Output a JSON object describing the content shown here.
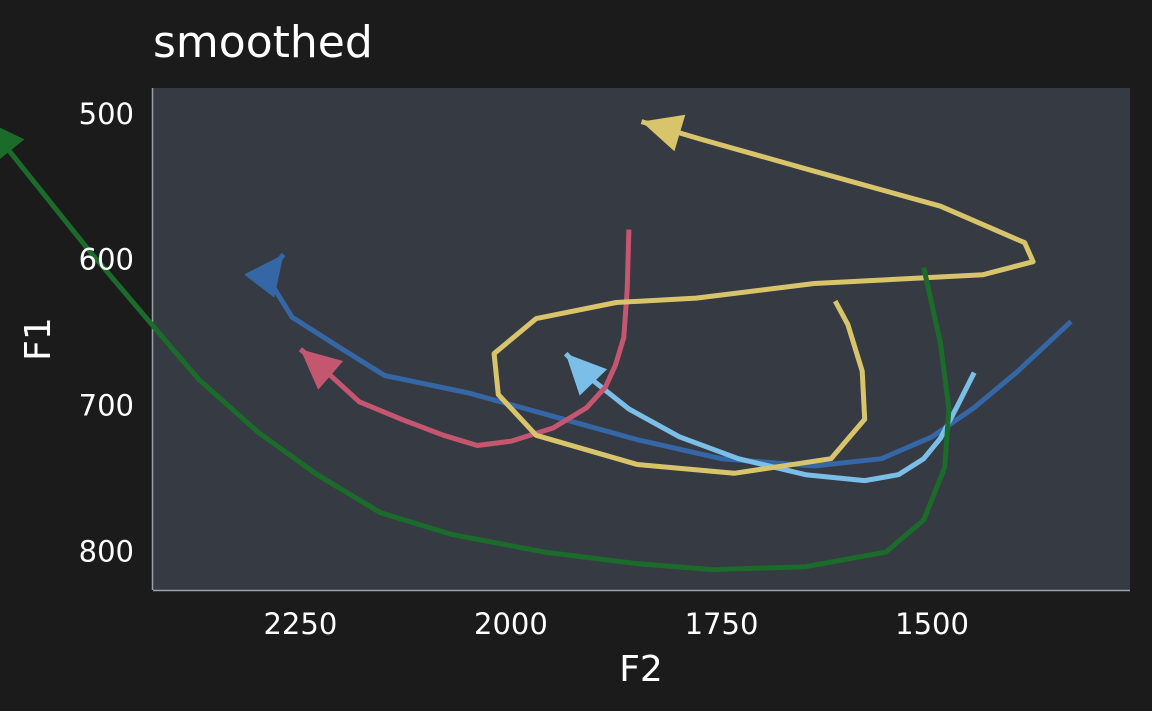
{
  "chart_data": {
    "type": "line",
    "title": "smoothed",
    "xlabel": "F2",
    "ylabel": "F1",
    "x_reversed": true,
    "y_reversed": true,
    "xlim": [
      2425,
      1265
    ],
    "ylim": [
      483,
      827
    ],
    "x_ticks": [
      2250,
      2000,
      1750,
      1500
    ],
    "y_ticks": [
      500,
      600,
      700,
      800
    ],
    "grid": false,
    "legend": "none",
    "background": "#1b1b1b",
    "panel_background": "#363a42",
    "series": [
      {
        "color": "#3566a6",
        "points": [
          [
            1335,
            643
          ],
          [
            1400,
            678
          ],
          [
            1450,
            702
          ],
          [
            1500,
            722
          ],
          [
            1560,
            737
          ],
          [
            1640,
            742
          ],
          [
            1750,
            737
          ],
          [
            1850,
            724
          ],
          [
            1950,
            708
          ],
          [
            2050,
            692
          ],
          [
            2150,
            680
          ],
          [
            2200,
            662
          ],
          [
            2260,
            640
          ],
          [
            2290,
            612
          ],
          [
            2270,
            597
          ]
        ]
      },
      {
        "color": "#7bbfe8",
        "points": [
          [
            1450,
            678
          ],
          [
            1470,
            701
          ],
          [
            1490,
            723
          ],
          [
            1510,
            737
          ],
          [
            1540,
            748
          ],
          [
            1580,
            752
          ],
          [
            1650,
            748
          ],
          [
            1730,
            737
          ],
          [
            1800,
            722
          ],
          [
            1860,
            703
          ],
          [
            1910,
            680
          ],
          [
            1935,
            665
          ]
        ]
      },
      {
        "color": "#c5566f",
        "points": [
          [
            1860,
            580
          ],
          [
            1862,
            621
          ],
          [
            1866,
            654
          ],
          [
            1876,
            673
          ],
          [
            1888,
            688
          ],
          [
            1910,
            702
          ],
          [
            1950,
            716
          ],
          [
            2000,
            725
          ],
          [
            2040,
            728
          ],
          [
            2080,
            721
          ],
          [
            2130,
            710
          ],
          [
            2180,
            698
          ],
          [
            2220,
            677
          ],
          [
            2250,
            662
          ]
        ]
      },
      {
        "color": "#d8c46a",
        "points": [
          [
            1615,
            629
          ],
          [
            1600,
            645
          ],
          [
            1583,
            677
          ],
          [
            1580,
            710
          ],
          [
            1620,
            737
          ],
          [
            1735,
            747
          ],
          [
            1850,
            741
          ],
          [
            1970,
            721
          ],
          [
            2015,
            693
          ],
          [
            2020,
            665
          ],
          [
            1970,
            641
          ],
          [
            1875,
            630
          ],
          [
            1780,
            627
          ],
          [
            1640,
            617
          ],
          [
            1440,
            611
          ],
          [
            1380,
            602
          ],
          [
            1390,
            589
          ],
          [
            1490,
            564
          ],
          [
            1640,
            540
          ],
          [
            1775,
            518
          ],
          [
            1845,
            506
          ]
        ]
      },
      {
        "color": "#1b6b2a",
        "points": [
          [
            1510,
            606
          ],
          [
            1490,
            658
          ],
          [
            1480,
            703
          ],
          [
            1485,
            743
          ],
          [
            1510,
            779
          ],
          [
            1555,
            801
          ],
          [
            1650,
            811
          ],
          [
            1760,
            813
          ],
          [
            1850,
            809
          ],
          [
            1960,
            801
          ],
          [
            2070,
            789
          ],
          [
            2155,
            774
          ],
          [
            2230,
            748
          ],
          [
            2300,
            719
          ],
          [
            2370,
            683
          ],
          [
            2400,
            663
          ],
          [
            2500,
            595
          ],
          [
            2625,
            505
          ]
        ]
      }
    ]
  }
}
